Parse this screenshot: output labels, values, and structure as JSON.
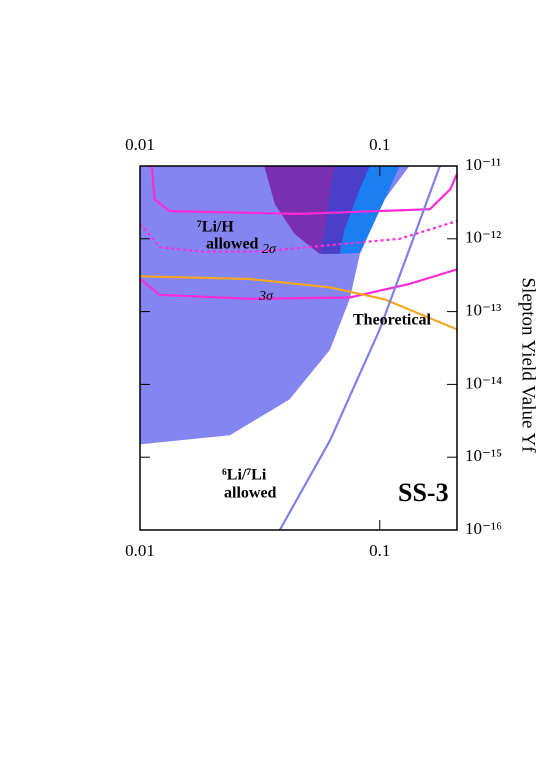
{
  "chart_data": {
    "type": "contour",
    "xlim": [
      0.01,
      0.21
    ],
    "ylim": [
      1e-16,
      1e-11
    ],
    "xscale": "log",
    "yscale": "log",
    "xticks": [
      0.01,
      0.1
    ],
    "yticks": [
      {
        "value": 1e-11,
        "label": "10⁻¹¹"
      },
      {
        "value": 1e-12,
        "label": "10⁻¹²"
      },
      {
        "value": 1e-13,
        "label": "10⁻¹³"
      },
      {
        "value": 1e-14,
        "label": "10⁻¹⁴"
      },
      {
        "value": 1e-15,
        "label": "10⁻¹⁵"
      },
      {
        "value": 1e-16,
        "label": "10⁻¹⁶"
      }
    ],
    "ylabel": "Slepton Yield Value Yf",
    "series": [
      {
        "kind": "area",
        "color": "#8585f2",
        "x": [
          0.01,
          0.133,
          0.105,
          0.0826,
          0.075,
          0.062,
          0.042,
          0.0237,
          0.01
        ],
        "values": [
          1e-11,
          1e-11,
          3.5e-12,
          6.1e-13,
          1.5e-13,
          3e-14,
          6.2e-15,
          2e-15,
          1.5e-15
        ]
      },
      {
        "kind": "area",
        "color": "#1a7ff0",
        "x": [
          0.0825,
          0.0715,
          0.068,
          0.0825,
          0.105,
          0.121
        ],
        "values": [
          1e-11,
          1.36e-12,
          6.2e-13,
          6.4e-13,
          3.5e-12,
          1e-11
        ]
      },
      {
        "kind": "area",
        "color": "#4a3fc8",
        "x": [
          0.062,
          0.059,
          0.0562,
          0.068,
          0.0715,
          0.0825,
          0.0909
        ],
        "values": [
          1e-11,
          1.36e-12,
          6.2e-13,
          6.2e-13,
          1.36e-12,
          4.8e-12,
          1e-11
        ]
      },
      {
        "kind": "area",
        "color": "#7a2fb0",
        "x": [
          0.033,
          0.0365,
          0.0442,
          0.0562,
          0.059,
          0.062,
          0.065
        ],
        "values": [
          1e-11,
          3e-12,
          1.16e-12,
          6.2e-13,
          1.36e-12,
          4.8e-12,
          1e-11
        ]
      },
      {
        "kind": "line",
        "color": "#ff2bd6",
        "dash": false,
        "x": [
          0.0112,
          0.0115,
          0.0133,
          0.0464,
          0.162,
          0.197,
          0.21
        ],
        "values": [
          1e-11,
          3.5e-12,
          2.4e-12,
          2.2e-12,
          2.55e-12,
          4.8e-12,
          7.8e-12
        ]
      },
      {
        "kind": "line",
        "color": "#ff2bd6",
        "dash": true,
        "x": [
          0.01,
          0.0121,
          0.0178,
          0.0316,
          0.121,
          0.21
        ],
        "values": [
          1.6e-12,
          7.7e-13,
          6.7e-13,
          6.7e-13,
          1e-12,
          1.75e-12
        ]
      },
      {
        "kind": "line",
        "color": "#ff2bd6",
        "dash": false,
        "x": [
          0.01,
          0.0121,
          0.0287,
          0.075,
          0.133,
          0.21
        ],
        "values": [
          2.8e-13,
          1.7e-13,
          1.5e-13,
          1.56e-13,
          2.4e-13,
          3.8e-13
        ]
      },
      {
        "kind": "line",
        "color": "#f5a623",
        "dash": false,
        "x": [
          0.01,
          0.0287,
          0.062,
          0.105,
          0.21
        ],
        "values": [
          3.05e-13,
          2.8e-13,
          2.15e-13,
          1.47e-13,
          5.7e-14
        ]
      },
      {
        "kind": "line",
        "color": "#7f7fe8",
        "dash": false,
        "x": [
          0.0383,
          0.062,
          0.1,
          0.133,
          0.178
        ],
        "values": [
          1e-16,
          1.7e-15,
          5.7e-14,
          7.2e-13,
          1e-11
        ]
      }
    ],
    "annotations": [
      "⁷Li/H",
      "allowed",
      "2σ",
      "3σ",
      "Theoretical",
      "⁶Li/⁷Li",
      "allowed",
      "SS-3"
    ]
  }
}
